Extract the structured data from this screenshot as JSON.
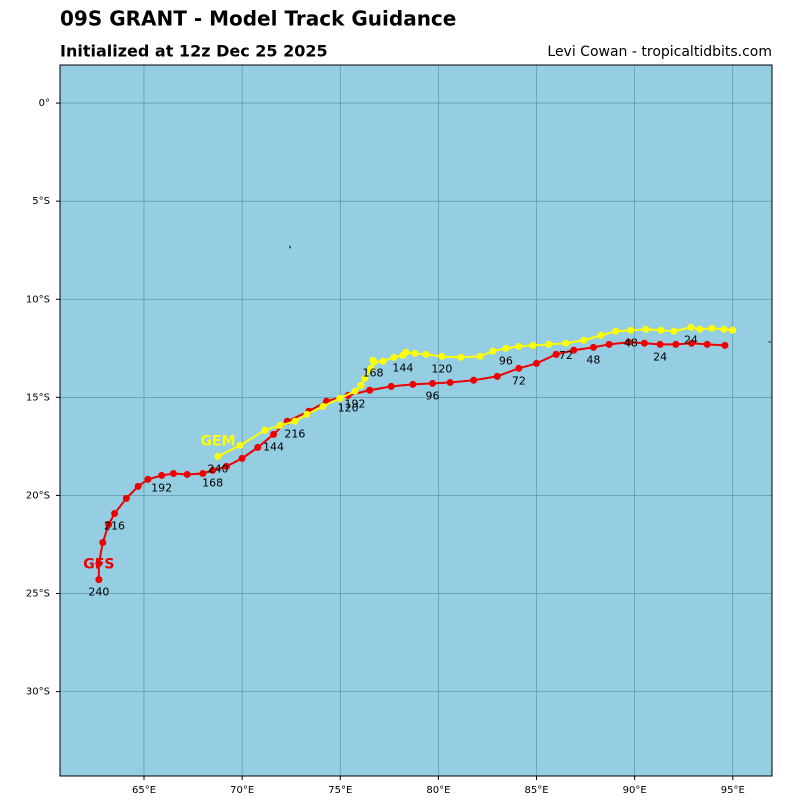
{
  "chart_data": {
    "type": "track",
    "title": "09S GRANT - Model Track Guidance",
    "subtitle": "Initialized at 12z Dec 25 2025",
    "credit": "Levi Cowan - tropicaltidbits.com",
    "xlim": [
      60.72,
      97
    ],
    "ylim": [
      -34.3,
      1.94
    ],
    "xticks": [
      {
        "value": 65,
        "label": "65°E"
      },
      {
        "value": 70,
        "label": "70°E"
      },
      {
        "value": 75,
        "label": "75°E"
      },
      {
        "value": 80,
        "label": "80°E"
      },
      {
        "value": 85,
        "label": "85°E"
      },
      {
        "value": 90,
        "label": "90°E"
      },
      {
        "value": 95,
        "label": "95°E"
      }
    ],
    "yticks": [
      {
        "value": 0,
        "label": "0°"
      },
      {
        "value": -5,
        "label": "5°S"
      },
      {
        "value": -10,
        "label": "10°S"
      },
      {
        "value": -15,
        "label": "15°S"
      },
      {
        "value": -20,
        "label": "20°S"
      },
      {
        "value": -25,
        "label": "25°S"
      },
      {
        "value": -30,
        "label": "30°S"
      }
    ],
    "grid": true,
    "background": "#95cde2",
    "series": [
      {
        "name": "GFS",
        "color": "#ee0000",
        "x": [
          94.6,
          93.7,
          92.9,
          92.1,
          91.3,
          90.5,
          89.7,
          88.7,
          87.9,
          86.9,
          86.0,
          85.0,
          84.1,
          83.0,
          81.8,
          80.6,
          79.7,
          78.7,
          77.6,
          76.5,
          75.4,
          74.3,
          73.4,
          72.3,
          71.6,
          70.8,
          70.0,
          69.2,
          68.5,
          68.0,
          67.2,
          66.5,
          65.9,
          65.2,
          64.7,
          64.1,
          63.5,
          63.2,
          62.9,
          62.7,
          62.7
        ],
        "values": [
          -12.35,
          -12.3,
          -12.24,
          -12.3,
          -12.3,
          -12.24,
          -12.19,
          -12.3,
          -12.45,
          -12.6,
          -12.81,
          -13.27,
          -13.52,
          -13.93,
          -14.13,
          -14.24,
          -14.29,
          -14.34,
          -14.44,
          -14.64,
          -14.9,
          -15.2,
          -15.71,
          -16.22,
          -16.89,
          -17.55,
          -18.11,
          -18.52,
          -18.72,
          -18.88,
          -18.93,
          -18.88,
          -18.98,
          -19.18,
          -19.54,
          -20.15,
          -20.92,
          -21.48,
          -22.4,
          -23.47,
          -24.29
        ],
        "labels": [
          null,
          null,
          null,
          null,
          "24",
          null,
          null,
          null,
          "48",
          null,
          null,
          null,
          "72",
          null,
          null,
          null,
          "96",
          null,
          null,
          null,
          "120",
          null,
          null,
          null,
          "144",
          null,
          null,
          null,
          "168",
          null,
          null,
          null,
          "192",
          null,
          null,
          null,
          "216",
          null,
          null,
          null,
          "240"
        ]
      },
      {
        "name": "GEM",
        "color": "#ffff00",
        "x": [
          95.0,
          94.55,
          93.94,
          93.32,
          92.87,
          92.0,
          91.34,
          90.57,
          89.81,
          89.04,
          88.28,
          87.41,
          86.5,
          85.63,
          84.82,
          84.1,
          83.44,
          82.78,
          82.12,
          81.15,
          80.18,
          79.37,
          78.81,
          78.35,
          78.19,
          77.74,
          77.18,
          76.72,
          76.67,
          76.56,
          76.26,
          76.05,
          75.75,
          74.98,
          74.12,
          73.3,
          72.69,
          71.93,
          71.16,
          69.89,
          68.77
        ],
        "values": [
          -11.58,
          -11.53,
          -11.48,
          -11.53,
          -11.43,
          -11.63,
          -11.58,
          -11.53,
          -11.58,
          -11.63,
          -11.84,
          -12.09,
          -12.24,
          -12.3,
          -12.35,
          -12.4,
          -12.5,
          -12.65,
          -12.91,
          -12.96,
          -12.91,
          -12.81,
          -12.76,
          -12.7,
          -12.86,
          -12.96,
          -13.16,
          -13.21,
          -13.11,
          -13.52,
          -14.03,
          -14.39,
          -14.69,
          -15.05,
          -15.46,
          -15.87,
          -16.22,
          -16.43,
          -16.68,
          -17.45,
          -18.01
        ],
        "labels": [
          null,
          null,
          null,
          null,
          "24",
          null,
          null,
          null,
          "48",
          null,
          null,
          null,
          "72",
          null,
          null,
          null,
          "96",
          null,
          null,
          null,
          "120",
          null,
          null,
          null,
          "144",
          null,
          null,
          null,
          "168",
          null,
          null,
          null,
          "192",
          null,
          null,
          null,
          "216",
          null,
          null,
          null,
          "240"
        ]
      }
    ]
  }
}
